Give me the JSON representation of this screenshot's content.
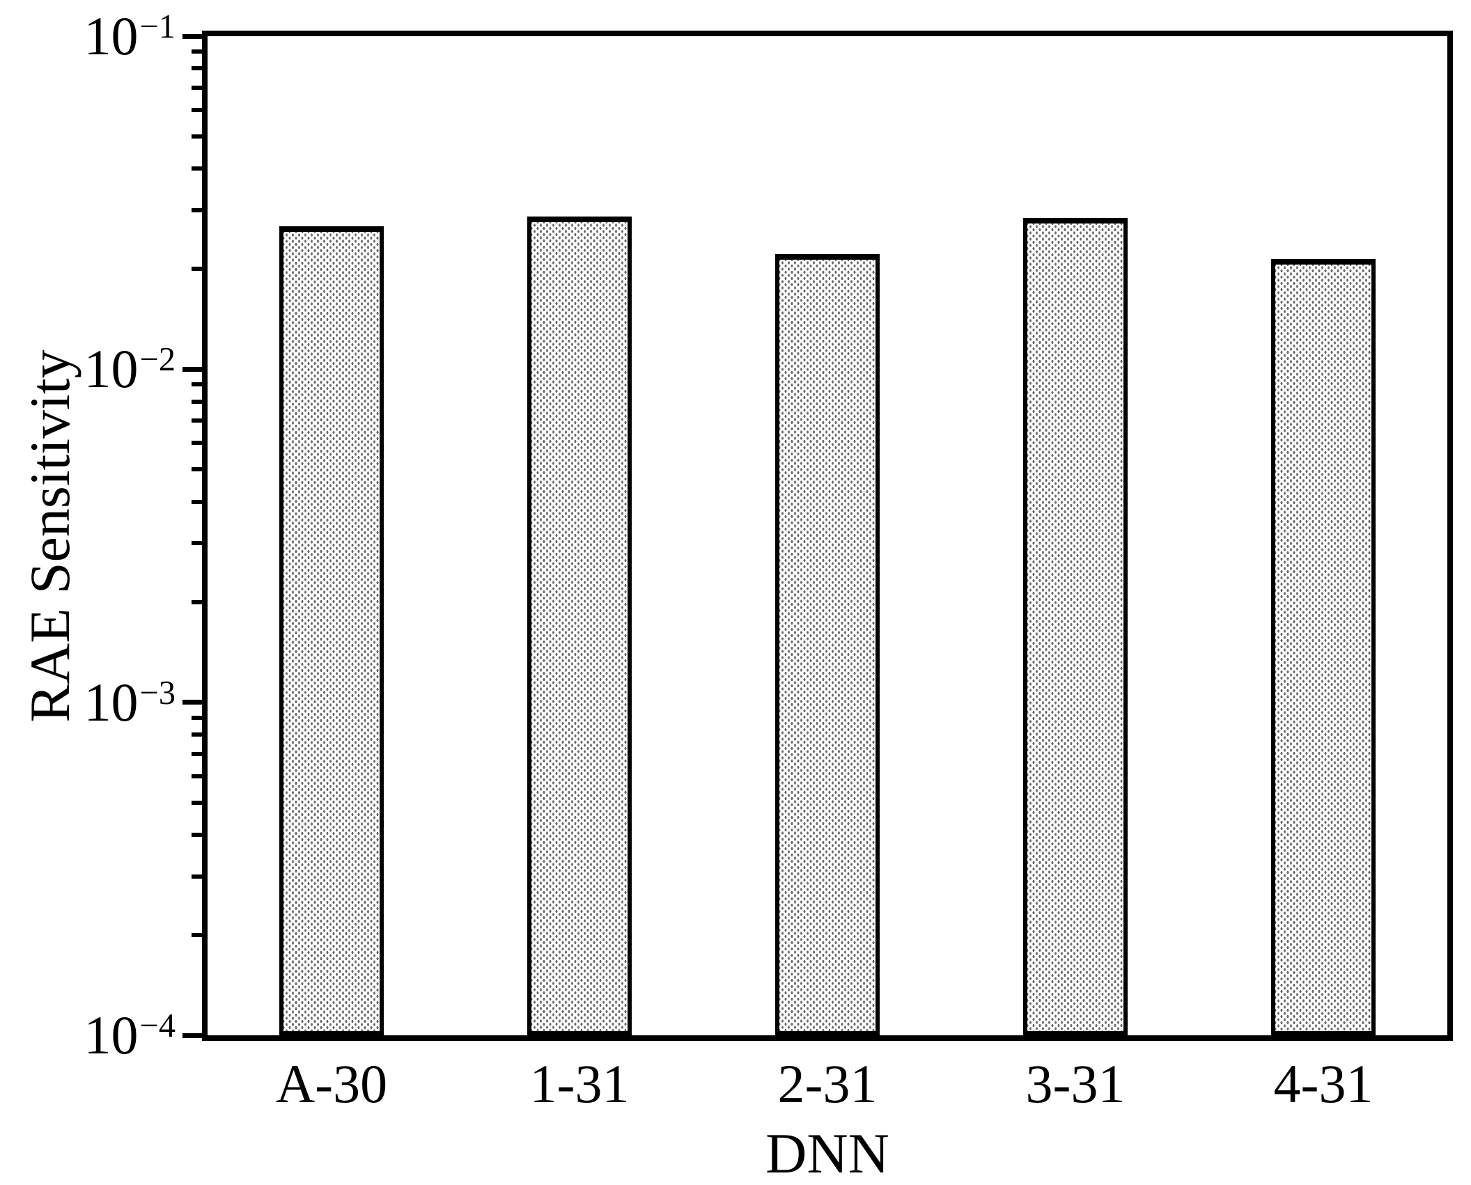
{
  "chart_data": {
    "type": "bar",
    "categories": [
      "A-30",
      "1-31",
      "2-31",
      "3-31",
      "4-31"
    ],
    "values": [
      0.0269,
      0.0288,
      0.0222,
      0.0285,
      0.0214
    ],
    "title": "",
    "xlabel": "DNN",
    "ylabel": "RAE Sensitivity",
    "yscale": "log",
    "ylim": [
      0.0001,
      0.1
    ],
    "y_tick_labels": [
      "10⁻¹",
      "10⁻²",
      "10⁻³",
      "10⁻⁴"
    ],
    "y_tick_exponents": [
      -1,
      -2,
      -3,
      -4
    ],
    "minus_sign": "−",
    "grid": false,
    "legend": null,
    "bar_fill": "gray-dot-pattern",
    "bar_pattern_color": "#6b6b6b",
    "bar_background_color": "#ffffff",
    "edge_color": "#000000",
    "axis_color": "#000000",
    "background_color": "#ffffff"
  }
}
